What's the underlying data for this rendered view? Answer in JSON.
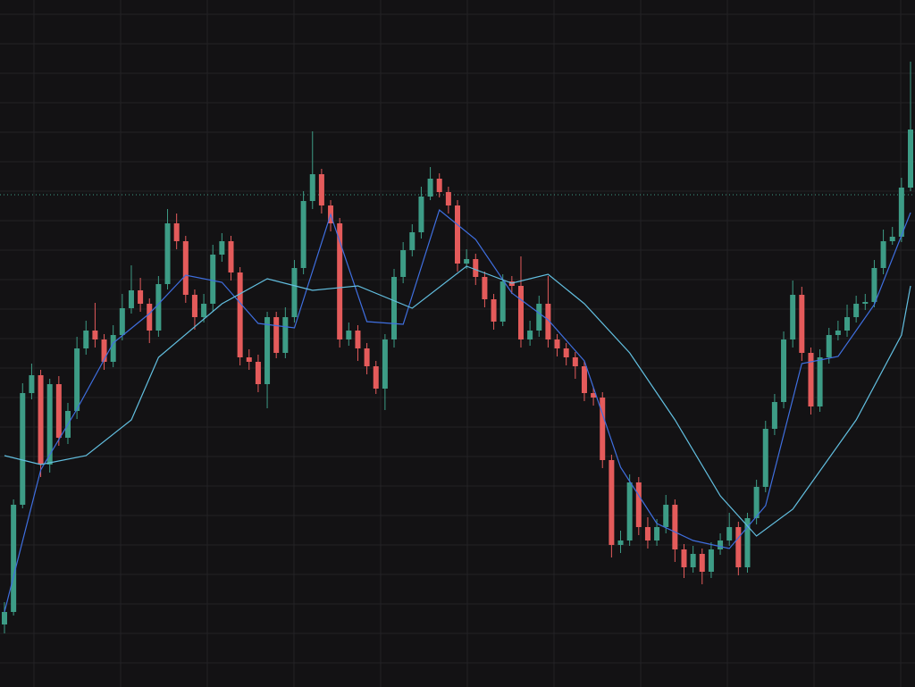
{
  "chart_data": {
    "type": "candlestick",
    "ylim": [
      0,
      769
    ],
    "up_color": "#3d9c86",
    "down_color": "#e45b5b",
    "price_line": {
      "value": 551,
      "color": "#3d9c86"
    },
    "open": [
      70,
      84,
      204,
      329,
      349,
      249,
      339,
      279,
      309,
      379,
      399,
      389,
      364,
      394,
      424,
      444,
      429,
      399,
      451,
      519,
      499,
      439,
      414,
      429,
      484,
      499,
      464,
      369,
      364,
      339,
      414,
      374,
      414,
      469,
      544,
      574,
      539,
      519,
      389,
      399,
      379,
      359,
      334,
      389,
      459,
      489,
      509,
      549,
      569,
      554,
      539,
      474,
      479,
      459,
      434,
      409,
      454,
      449,
      389,
      399,
      429,
      389,
      379,
      369,
      359,
      329,
      324,
      254,
      159,
      164,
      229,
      179,
      164,
      179,
      204,
      154,
      134,
      149,
      129,
      154,
      164,
      179,
      134,
      189,
      224,
      289,
      319,
      389,
      439,
      374,
      314,
      369,
      394,
      399,
      414,
      429,
      431,
      469,
      499,
      504,
      559
    ],
    "high": [
      95,
      210,
      340,
      362,
      355,
      345,
      348,
      318,
      392,
      410,
      430,
      395,
      405,
      440,
      472,
      458,
      435,
      460,
      535,
      530,
      505,
      445,
      440,
      495,
      508,
      505,
      470,
      378,
      372,
      420,
      420,
      425,
      478,
      555,
      622,
      580,
      545,
      525,
      408,
      405,
      385,
      365,
      395,
      468,
      498,
      518,
      560,
      582,
      575,
      560,
      545,
      490,
      485,
      465,
      440,
      462,
      460,
      482,
      410,
      438,
      460,
      395,
      385,
      375,
      365,
      335,
      330,
      260,
      175,
      238,
      235,
      190,
      188,
      215,
      210,
      160,
      158,
      155,
      162,
      172,
      195,
      185,
      195,
      232,
      298,
      328,
      398,
      455,
      448,
      380,
      378,
      402,
      410,
      428,
      438,
      440,
      478,
      512,
      515,
      570,
      700
    ],
    "low": [
      60,
      80,
      200,
      322,
      235,
      240,
      270,
      272,
      300,
      372,
      380,
      355,
      358,
      388,
      418,
      420,
      385,
      392,
      445,
      490,
      430,
      400,
      408,
      420,
      476,
      455,
      360,
      355,
      330,
      312,
      368,
      368,
      408,
      462,
      535,
      530,
      510,
      380,
      382,
      365,
      350,
      328,
      310,
      380,
      452,
      482,
      502,
      545,
      548,
      530,
      465,
      468,
      450,
      425,
      400,
      404,
      440,
      380,
      382,
      392,
      380,
      370,
      360,
      345,
      320,
      315,
      245,
      145,
      150,
      158,
      170,
      155,
      158,
      172,
      140,
      122,
      128,
      115,
      122,
      148,
      158,
      125,
      128,
      182,
      218,
      282,
      312,
      380,
      365,
      305,
      308,
      362,
      388,
      392,
      408,
      422,
      425,
      462,
      495,
      498,
      555
    ],
    "close": [
      84,
      204,
      329,
      349,
      249,
      339,
      279,
      309,
      379,
      399,
      389,
      364,
      394,
      424,
      444,
      429,
      399,
      451,
      519,
      499,
      439,
      414,
      429,
      484,
      499,
      464,
      369,
      364,
      339,
      414,
      374,
      414,
      469,
      544,
      574,
      539,
      519,
      389,
      399,
      379,
      359,
      334,
      389,
      459,
      489,
      509,
      549,
      569,
      554,
      539,
      474,
      479,
      459,
      434,
      409,
      454,
      449,
      389,
      399,
      429,
      389,
      379,
      369,
      359,
      329,
      324,
      254,
      159,
      164,
      229,
      179,
      164,
      179,
      204,
      154,
      134,
      149,
      129,
      154,
      164,
      179,
      134,
      189,
      224,
      289,
      319,
      389,
      439,
      374,
      314,
      369,
      394,
      399,
      414,
      429,
      431,
      469,
      499,
      504,
      559,
      624
    ],
    "lines": [
      {
        "color": "#3f6fe0",
        "x": [
          0,
          4,
          8,
          12,
          16,
          20,
          24,
          28,
          32,
          36,
          40,
          44,
          48,
          52,
          56,
          60,
          64,
          68,
          72,
          76,
          80,
          84,
          88,
          92,
          96,
          100
        ],
        "values": [
          84,
          243,
          311,
          385,
          418,
          461,
          453,
          407,
          402,
          529,
          409,
          406,
          534,
          501,
          441,
          411,
          365,
          246,
          183,
          164,
          155,
          203,
          362,
          370,
          428,
          531
        ]
      },
      {
        "color": "#62bfe0",
        "x": [
          0,
          4,
          9,
          14,
          17,
          24,
          29,
          34,
          39,
          45,
          51,
          56,
          60,
          64,
          69,
          74,
          79,
          83,
          87,
          94,
          99,
          100
        ],
        "values": [
          259,
          249,
          259,
          299,
          369,
          429,
          457,
          444,
          449,
          424,
          471,
          452,
          462,
          429,
          374,
          299,
          214,
          169,
          199,
          299,
          394,
          449
        ]
      }
    ]
  }
}
